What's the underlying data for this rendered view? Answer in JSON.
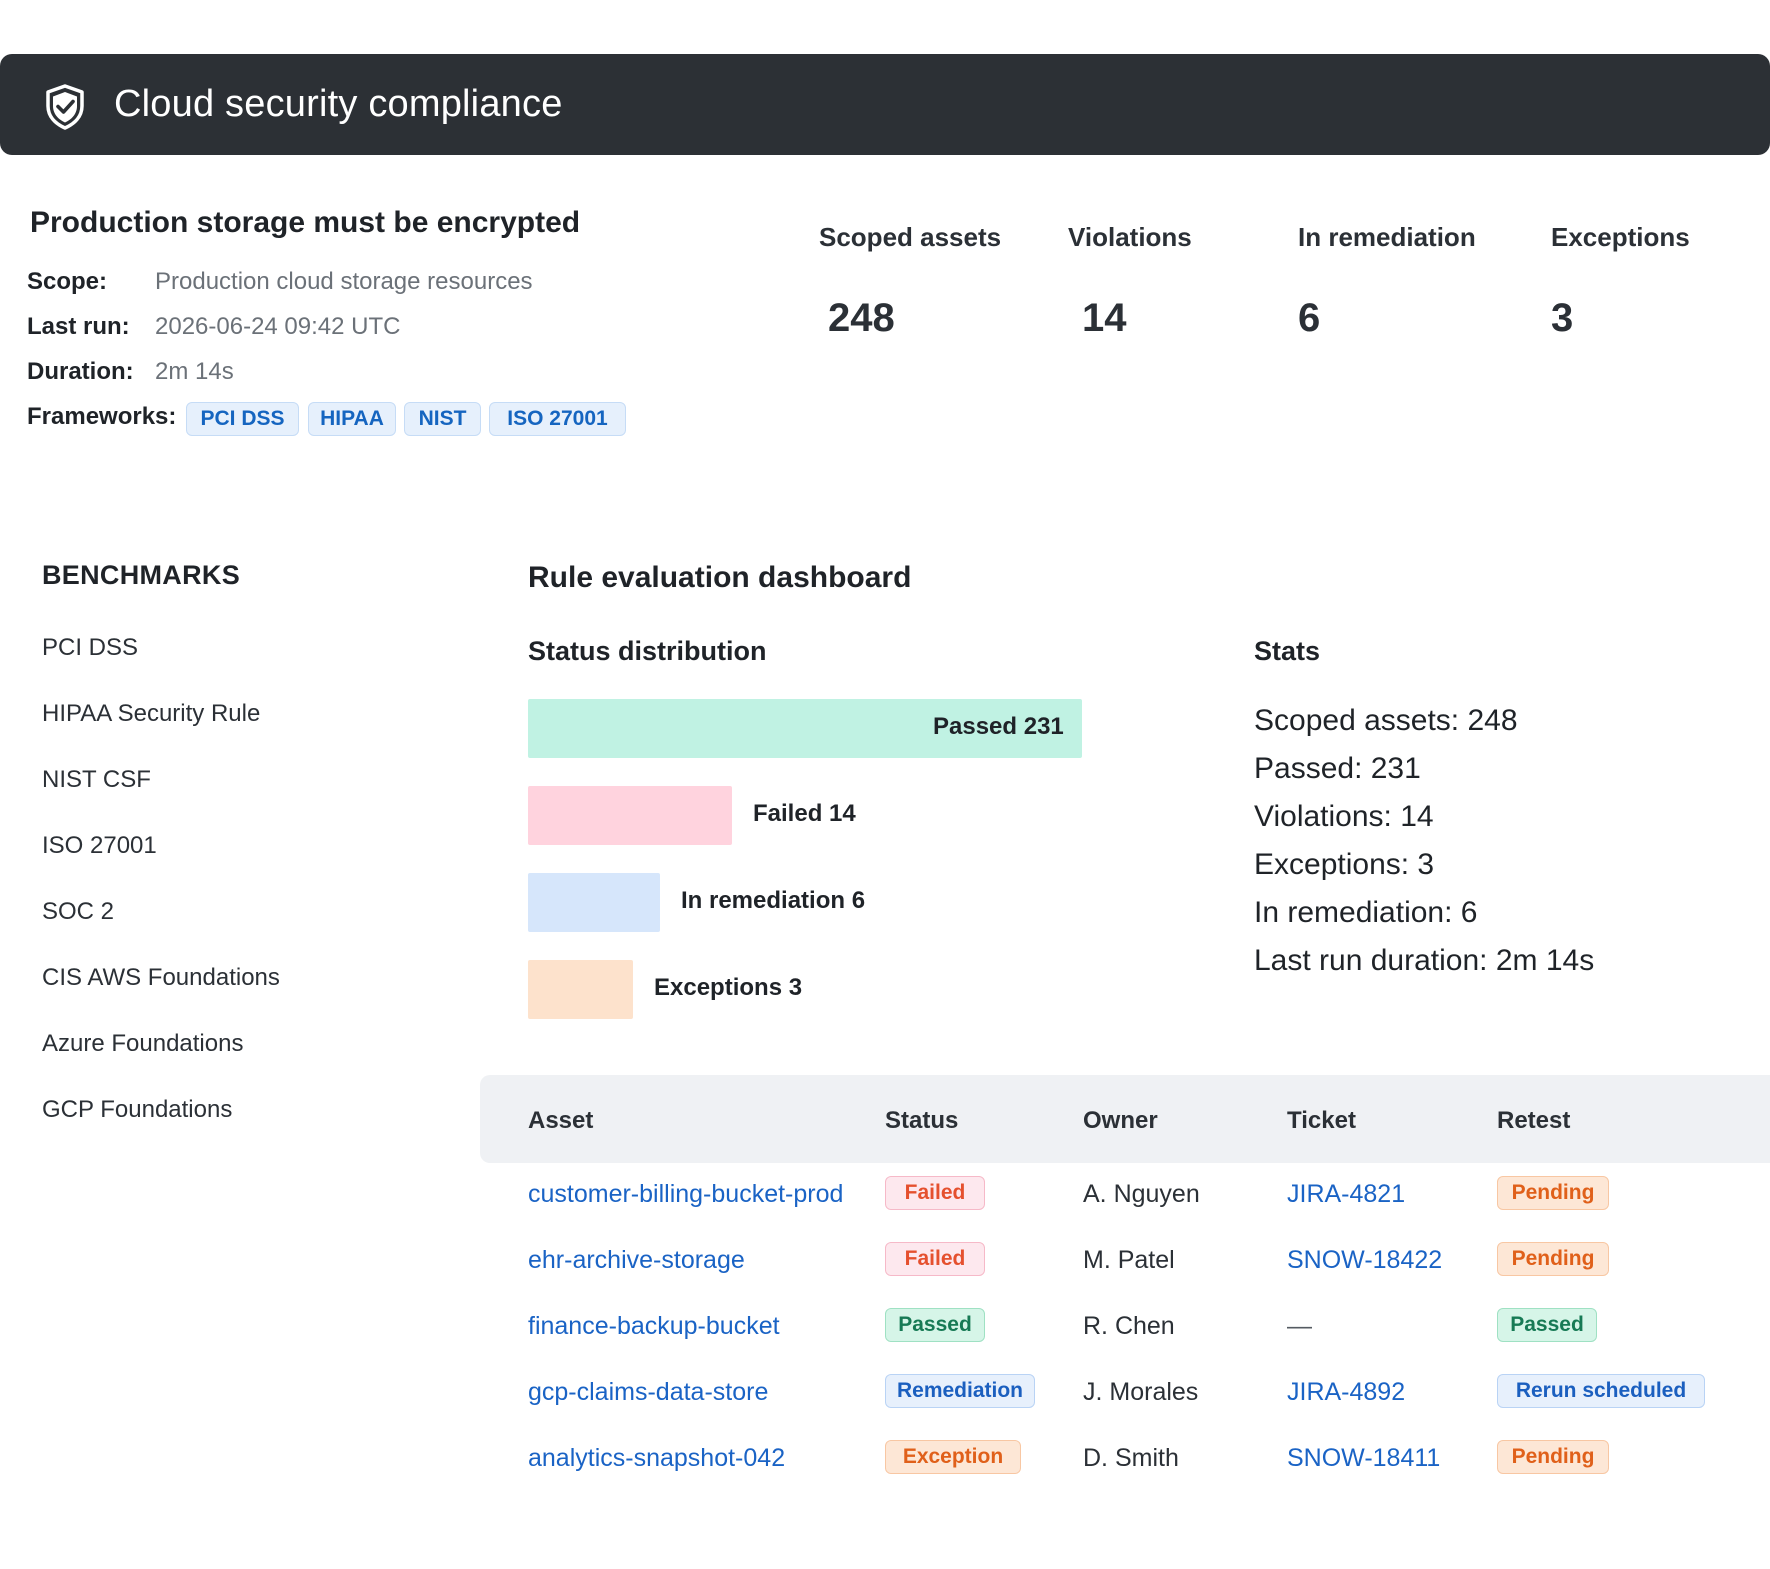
{
  "app": {
    "title": "Cloud security compliance",
    "icon": "shield-check-icon"
  },
  "rule": {
    "title": "Production storage must be encrypted",
    "scope_label": "Scope:",
    "scope_value": "Production cloud storage resources",
    "last_run_label": "Last run:",
    "last_run_value": "2026-06-24 09:42 UTC",
    "duration_label": "Duration:",
    "duration_value": "2m 14s",
    "frameworks_label": "Frameworks:",
    "frameworks": [
      "PCI DSS",
      "HIPAA",
      "NIST",
      "ISO 27001"
    ]
  },
  "kpis": [
    {
      "label": "Scoped assets",
      "value": "248"
    },
    {
      "label": "Violations",
      "value": "14"
    },
    {
      "label": "In remediation",
      "value": "6"
    },
    {
      "label": "Exceptions",
      "value": "3"
    }
  ],
  "sidebar": {
    "heading": "BENCHMARKS",
    "items": [
      "PCI DSS",
      "HIPAA Security Rule",
      "NIST CSF",
      "ISO 27001",
      "SOC 2",
      "CIS AWS Foundations",
      "Azure Foundations",
      "GCP Foundations"
    ]
  },
  "dashboard": {
    "title": "Rule evaluation dashboard",
    "distribution_title": "Status distribution",
    "stats_title": "Stats",
    "distribution": [
      {
        "label": "Passed 231",
        "value": 231,
        "color": "#c0f2e3"
      },
      {
        "label": "Failed 14",
        "value": 14,
        "color": "#ffd3de"
      },
      {
        "label": "In remediation 6",
        "value": 6,
        "color": "#d6e6fb"
      },
      {
        "label": "Exceptions 3",
        "value": 3,
        "color": "#fde2cc"
      }
    ],
    "stats": [
      "Scoped assets: 248",
      "Passed: 231",
      "Violations: 14",
      "Exceptions: 3",
      "In remediation: 6",
      "Last run duration: 2m 14s"
    ]
  },
  "table": {
    "headers": [
      "Asset",
      "Status",
      "Owner",
      "Ticket",
      "Retest"
    ],
    "rows": [
      {
        "asset": "customer-billing-bucket-prod",
        "status": "Failed",
        "status_kind": "failed",
        "owner": "A. Nguyen",
        "ticket": "JIRA-4821",
        "ticket_link": true,
        "retest": "Pending",
        "retest_kind": "pending"
      },
      {
        "asset": "ehr-archive-storage",
        "status": "Failed",
        "status_kind": "failed",
        "owner": "M. Patel",
        "ticket": "SNOW-18422",
        "ticket_link": true,
        "retest": "Pending",
        "retest_kind": "pending"
      },
      {
        "asset": "finance-backup-bucket",
        "status": "Passed",
        "status_kind": "passed",
        "owner": "R. Chen",
        "ticket": "—",
        "ticket_link": false,
        "retest": "Passed",
        "retest_kind": "passed"
      },
      {
        "asset": "gcp-claims-data-store",
        "status": "Remediation",
        "status_kind": "remed",
        "owner": "J. Morales",
        "ticket": "JIRA-4892",
        "ticket_link": true,
        "retest": "Rerun scheduled",
        "retest_kind": "remed"
      },
      {
        "asset": "analytics-snapshot-042",
        "status": "Exception",
        "status_kind": "exc",
        "owner": "D. Smith",
        "ticket": "SNOW-18411",
        "ticket_link": true,
        "retest": "Pending",
        "retest_kind": "pending"
      }
    ]
  }
}
